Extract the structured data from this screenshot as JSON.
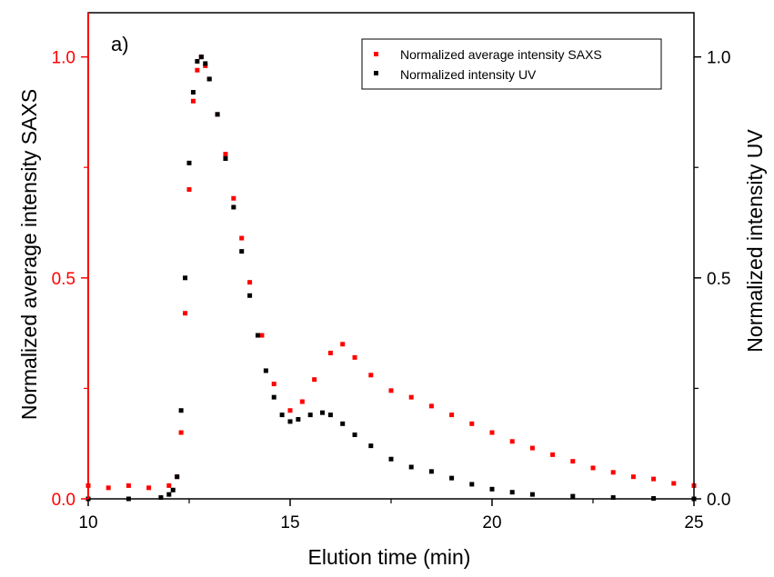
{
  "chart_data": {
    "type": "scatter",
    "panel_label": "a)",
    "xlabel": "Elution time (min)",
    "ylabel_left": "Normalized average intensity SAXS",
    "ylabel_right": "Normalized intensity UV",
    "xlim": [
      10,
      25
    ],
    "ylim": [
      0,
      1.1
    ],
    "x_ticks": [
      "10",
      "15",
      "20",
      "25"
    ],
    "y_ticks_left": [
      "0.0",
      "0.5",
      "1.0"
    ],
    "y_ticks_right": [
      "0.0",
      "0.5",
      "1.0"
    ],
    "grid": false,
    "legend_position": "top-right",
    "colors": {
      "saxs": "#ff0000",
      "uv": "#000000",
      "left_axis": "#ff0000",
      "right_axis": "#000000"
    },
    "series": [
      {
        "name": "Normalized average intensity SAXS",
        "color": "#ff0000",
        "x": [
          10.0,
          10.5,
          11.0,
          11.5,
          12.0,
          12.2,
          12.3,
          12.4,
          12.5,
          12.6,
          12.7,
          12.8,
          12.9,
          13.0,
          13.2,
          13.4,
          13.6,
          13.8,
          14.0,
          14.3,
          14.6,
          15.0,
          15.3,
          15.6,
          16.0,
          16.3,
          16.6,
          17.0,
          17.5,
          18.0,
          18.5,
          19.0,
          19.5,
          20.0,
          20.5,
          21.0,
          21.5,
          22.0,
          22.5,
          23.0,
          23.5,
          24.0,
          24.5,
          25.0
        ],
        "y": [
          0.03,
          0.025,
          0.03,
          0.025,
          0.03,
          0.05,
          0.15,
          0.42,
          0.7,
          0.9,
          0.97,
          1.0,
          0.98,
          0.95,
          0.87,
          0.78,
          0.68,
          0.59,
          0.49,
          0.37,
          0.26,
          0.2,
          0.22,
          0.27,
          0.33,
          0.35,
          0.32,
          0.28,
          0.245,
          0.23,
          0.21,
          0.19,
          0.17,
          0.15,
          0.13,
          0.115,
          0.1,
          0.085,
          0.07,
          0.06,
          0.05,
          0.045,
          0.035,
          0.03
        ]
      },
      {
        "name": "Normalized intensity UV",
        "color": "#000000",
        "x": [
          10.0,
          11.0,
          11.8,
          12.0,
          12.1,
          12.2,
          12.3,
          12.4,
          12.5,
          12.6,
          12.7,
          12.8,
          12.9,
          13.0,
          13.2,
          13.4,
          13.6,
          13.8,
          14.0,
          14.2,
          14.4,
          14.6,
          14.8,
          15.0,
          15.2,
          15.5,
          15.8,
          16.0,
          16.3,
          16.6,
          17.0,
          17.5,
          18.0,
          18.5,
          19.0,
          19.5,
          20.0,
          20.5,
          21.0,
          22.0,
          23.0,
          24.0,
          25.0
        ],
        "y": [
          0.0,
          0.0,
          0.003,
          0.01,
          0.02,
          0.05,
          0.2,
          0.5,
          0.76,
          0.92,
          0.99,
          1.0,
          0.985,
          0.95,
          0.87,
          0.77,
          0.66,
          0.56,
          0.46,
          0.37,
          0.29,
          0.23,
          0.19,
          0.175,
          0.18,
          0.19,
          0.195,
          0.19,
          0.17,
          0.145,
          0.12,
          0.09,
          0.072,
          0.062,
          0.047,
          0.033,
          0.022,
          0.015,
          0.01,
          0.006,
          0.003,
          0.001,
          0.0
        ]
      }
    ]
  }
}
